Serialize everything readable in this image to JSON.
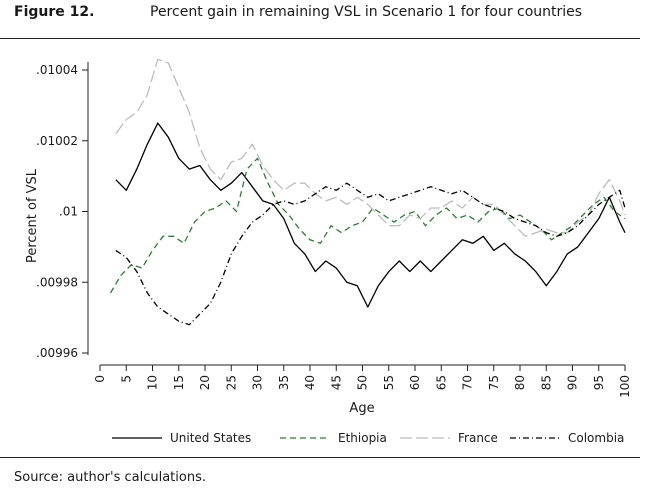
{
  "figure_label": "Figure 12.",
  "title": "Percent gain in remaining VSL in Scenario 1 for four countries",
  "source": "Source: author's calculations.",
  "chart_data": {
    "type": "line",
    "title": "Percent gain in remaining VSL in Scenario 1 for four countries",
    "xlabel": "Age",
    "ylabel": "Percent of VSL",
    "xlim": [
      0,
      100
    ],
    "ylim": [
      0.00996,
      0.01004
    ],
    "x_ticks": [
      "0",
      "5",
      "10",
      "15",
      "20",
      "25",
      "30",
      "35",
      "40",
      "45",
      "50",
      "55",
      "60",
      "65",
      "70",
      "75",
      "80",
      "85",
      "90",
      "95",
      "100"
    ],
    "y_ticks": [
      {
        "value": 0.00996,
        "label": ".00996"
      },
      {
        "value": 0.00998,
        "label": ".00998"
      },
      {
        "value": 0.01,
        "label": ".01"
      },
      {
        "value": 0.01002,
        "label": ".01002"
      },
      {
        "value": 0.01004,
        "label": ".01004"
      }
    ],
    "grid": false,
    "legend_position": "bottom",
    "series": [
      {
        "name": "United States",
        "color": "#000000",
        "dash": "solid",
        "x": [
          3,
          5,
          7,
          9,
          11,
          13,
          15,
          17,
          19,
          21,
          23,
          25,
          27,
          29,
          31,
          33,
          35,
          37,
          39,
          41,
          43,
          45,
          47,
          49,
          51,
          53,
          55,
          57,
          59,
          61,
          63,
          65,
          67,
          69,
          71,
          73,
          75,
          77,
          79,
          81,
          83,
          85,
          87,
          89,
          91,
          93,
          95,
          97,
          99,
          100
        ],
        "y": [
          0.010009,
          0.010006,
          0.010012,
          0.010019,
          0.010025,
          0.010021,
          0.010015,
          0.010012,
          0.010013,
          0.010009,
          0.010006,
          0.010008,
          0.010011,
          0.010007,
          0.010003,
          0.010002,
          0.009998,
          0.009991,
          0.009988,
          0.009983,
          0.009986,
          0.009984,
          0.00998,
          0.009979,
          0.009973,
          0.009979,
          0.009983,
          0.009986,
          0.009983,
          0.009986,
          0.009983,
          0.009986,
          0.009989,
          0.009992,
          0.009991,
          0.009993,
          0.009989,
          0.009991,
          0.009988,
          0.009986,
          0.009983,
          0.009979,
          0.009983,
          0.009988,
          0.00999,
          0.009994,
          0.009998,
          0.010004,
          0.009997,
          0.009994
        ]
      },
      {
        "name": "Ethiopia",
        "color": "#2e7d32",
        "dash": "6,4",
        "x": [
          2,
          4,
          6,
          8,
          10,
          12,
          14,
          16,
          18,
          20,
          22,
          24,
          26,
          28,
          30,
          32,
          34,
          36,
          38,
          40,
          42,
          44,
          46,
          48,
          50,
          52,
          54,
          56,
          58,
          60,
          62,
          64,
          66,
          68,
          70,
          72,
          74,
          76,
          78,
          80,
          82,
          84,
          86,
          88,
          90,
          92,
          94,
          96,
          98,
          100
        ],
        "y": [
          0.009977,
          0.009982,
          0.009985,
          0.009984,
          0.009989,
          0.009993,
          0.009993,
          0.009991,
          0.009997,
          0.01,
          0.010001,
          0.010003,
          0.01,
          0.010012,
          0.010015,
          0.010008,
          0.010002,
          0.009999,
          0.009995,
          0.009992,
          0.009991,
          0.009996,
          0.009994,
          0.009996,
          0.009997,
          0.010001,
          0.009999,
          0.009997,
          0.009999,
          0.01,
          0.009996,
          0.009999,
          0.010001,
          0.009998,
          0.009999,
          0.009997,
          0.01,
          0.010001,
          0.009998,
          0.009999,
          0.009997,
          0.009995,
          0.009992,
          0.009994,
          0.009996,
          0.009999,
          0.010002,
          0.010004,
          0.01,
          0.009998
        ]
      },
      {
        "name": "France",
        "color": "#bdbdbd",
        "dash": "12,4",
        "x": [
          3,
          5,
          7,
          9,
          11,
          13,
          15,
          17,
          19,
          21,
          23,
          25,
          27,
          29,
          31,
          33,
          35,
          37,
          39,
          41,
          43,
          45,
          47,
          49,
          51,
          53,
          55,
          57,
          59,
          61,
          63,
          65,
          67,
          69,
          71,
          73,
          75,
          77,
          79,
          81,
          83,
          85,
          87,
          89,
          91,
          93,
          95,
          97,
          99,
          100
        ],
        "y": [
          0.010022,
          0.010026,
          0.010028,
          0.010033,
          0.010043,
          0.010042,
          0.010035,
          0.010028,
          0.010018,
          0.010012,
          0.010009,
          0.010014,
          0.010015,
          0.010019,
          0.010013,
          0.010009,
          0.010006,
          0.010008,
          0.010008,
          0.010005,
          0.010003,
          0.010004,
          0.010002,
          0.010004,
          0.010002,
          0.009999,
          0.009996,
          0.009996,
          0.009999,
          0.009998,
          0.010001,
          0.010001,
          0.010003,
          0.010001,
          0.010004,
          0.010002,
          0.010002,
          0.009999,
          0.009996,
          0.009993,
          0.009994,
          0.009995,
          0.009994,
          0.009994,
          0.009997,
          0.009999,
          0.010005,
          0.010009,
          0.010003,
          0.009999
        ]
      },
      {
        "name": "Colombia",
        "color": "#000000",
        "dash": "6,3,1,3",
        "x": [
          3,
          5,
          7,
          9,
          11,
          13,
          15,
          17,
          19,
          21,
          23,
          25,
          27,
          29,
          31,
          33,
          35,
          37,
          39,
          41,
          43,
          45,
          47,
          49,
          51,
          53,
          55,
          57,
          59,
          61,
          63,
          65,
          67,
          69,
          71,
          73,
          75,
          77,
          79,
          81,
          83,
          85,
          87,
          89,
          91,
          93,
          95,
          97,
          99,
          100
        ],
        "y": [
          0.009989,
          0.009987,
          0.009983,
          0.009977,
          0.009973,
          0.009971,
          0.009969,
          0.009968,
          0.009971,
          0.009974,
          0.00998,
          0.009988,
          0.009993,
          0.009997,
          0.009999,
          0.010002,
          0.010003,
          0.010002,
          0.010003,
          0.010005,
          0.010007,
          0.010006,
          0.010008,
          0.010006,
          0.010004,
          0.010005,
          0.010003,
          0.010004,
          0.010005,
          0.010006,
          0.010007,
          0.010006,
          0.010005,
          0.010006,
          0.010004,
          0.010002,
          0.010001,
          0.01,
          0.009998,
          0.009997,
          0.009996,
          0.009994,
          0.009993,
          0.009994,
          0.009996,
          0.009999,
          0.010002,
          0.010004,
          0.010006,
          0.010001
        ]
      }
    ]
  }
}
